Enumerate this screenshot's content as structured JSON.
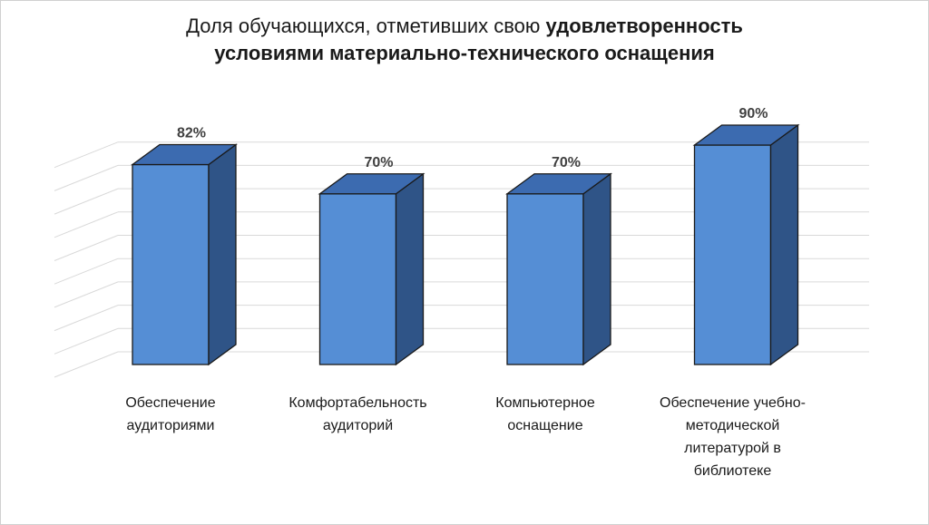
{
  "title": {
    "line1_regular": "Доля обучающихся, отметивших свою ",
    "line1_bold": "удовлетворенность",
    "line2_bold": "условиями материально-технического оснащения"
  },
  "chart_data": {
    "type": "bar",
    "title": "Доля обучающихся, отметивших свою удовлетворенность условиями материально-технического оснащения",
    "categories": [
      "Обеспечение аудиториями",
      "Комфортабельность аудиторий",
      "Компьютерное оснащение",
      "Обеспечение учебно-методической литературой в библиотеке"
    ],
    "values": [
      82,
      70,
      70,
      90
    ],
    "data_labels": [
      "82%",
      "70%",
      "70%",
      "90%"
    ],
    "unit": "%",
    "ylim": [
      0,
      90
    ],
    "grid": true,
    "style": "3d-column",
    "colors": {
      "front": "#558ED5",
      "top": "#3C6BB0",
      "side": "#2F5487",
      "outline": "#1a1a1a",
      "grid": "#d9d9d9"
    }
  },
  "categories_display": [
    [
      "Обеспечение",
      "аудиториями"
    ],
    [
      "Комфортабельность",
      "аудиторий"
    ],
    [
      "Компьютерное",
      "оснащение"
    ],
    [
      "Обеспечение учебно-",
      "методической",
      "литературой в",
      "библиотеке"
    ]
  ]
}
